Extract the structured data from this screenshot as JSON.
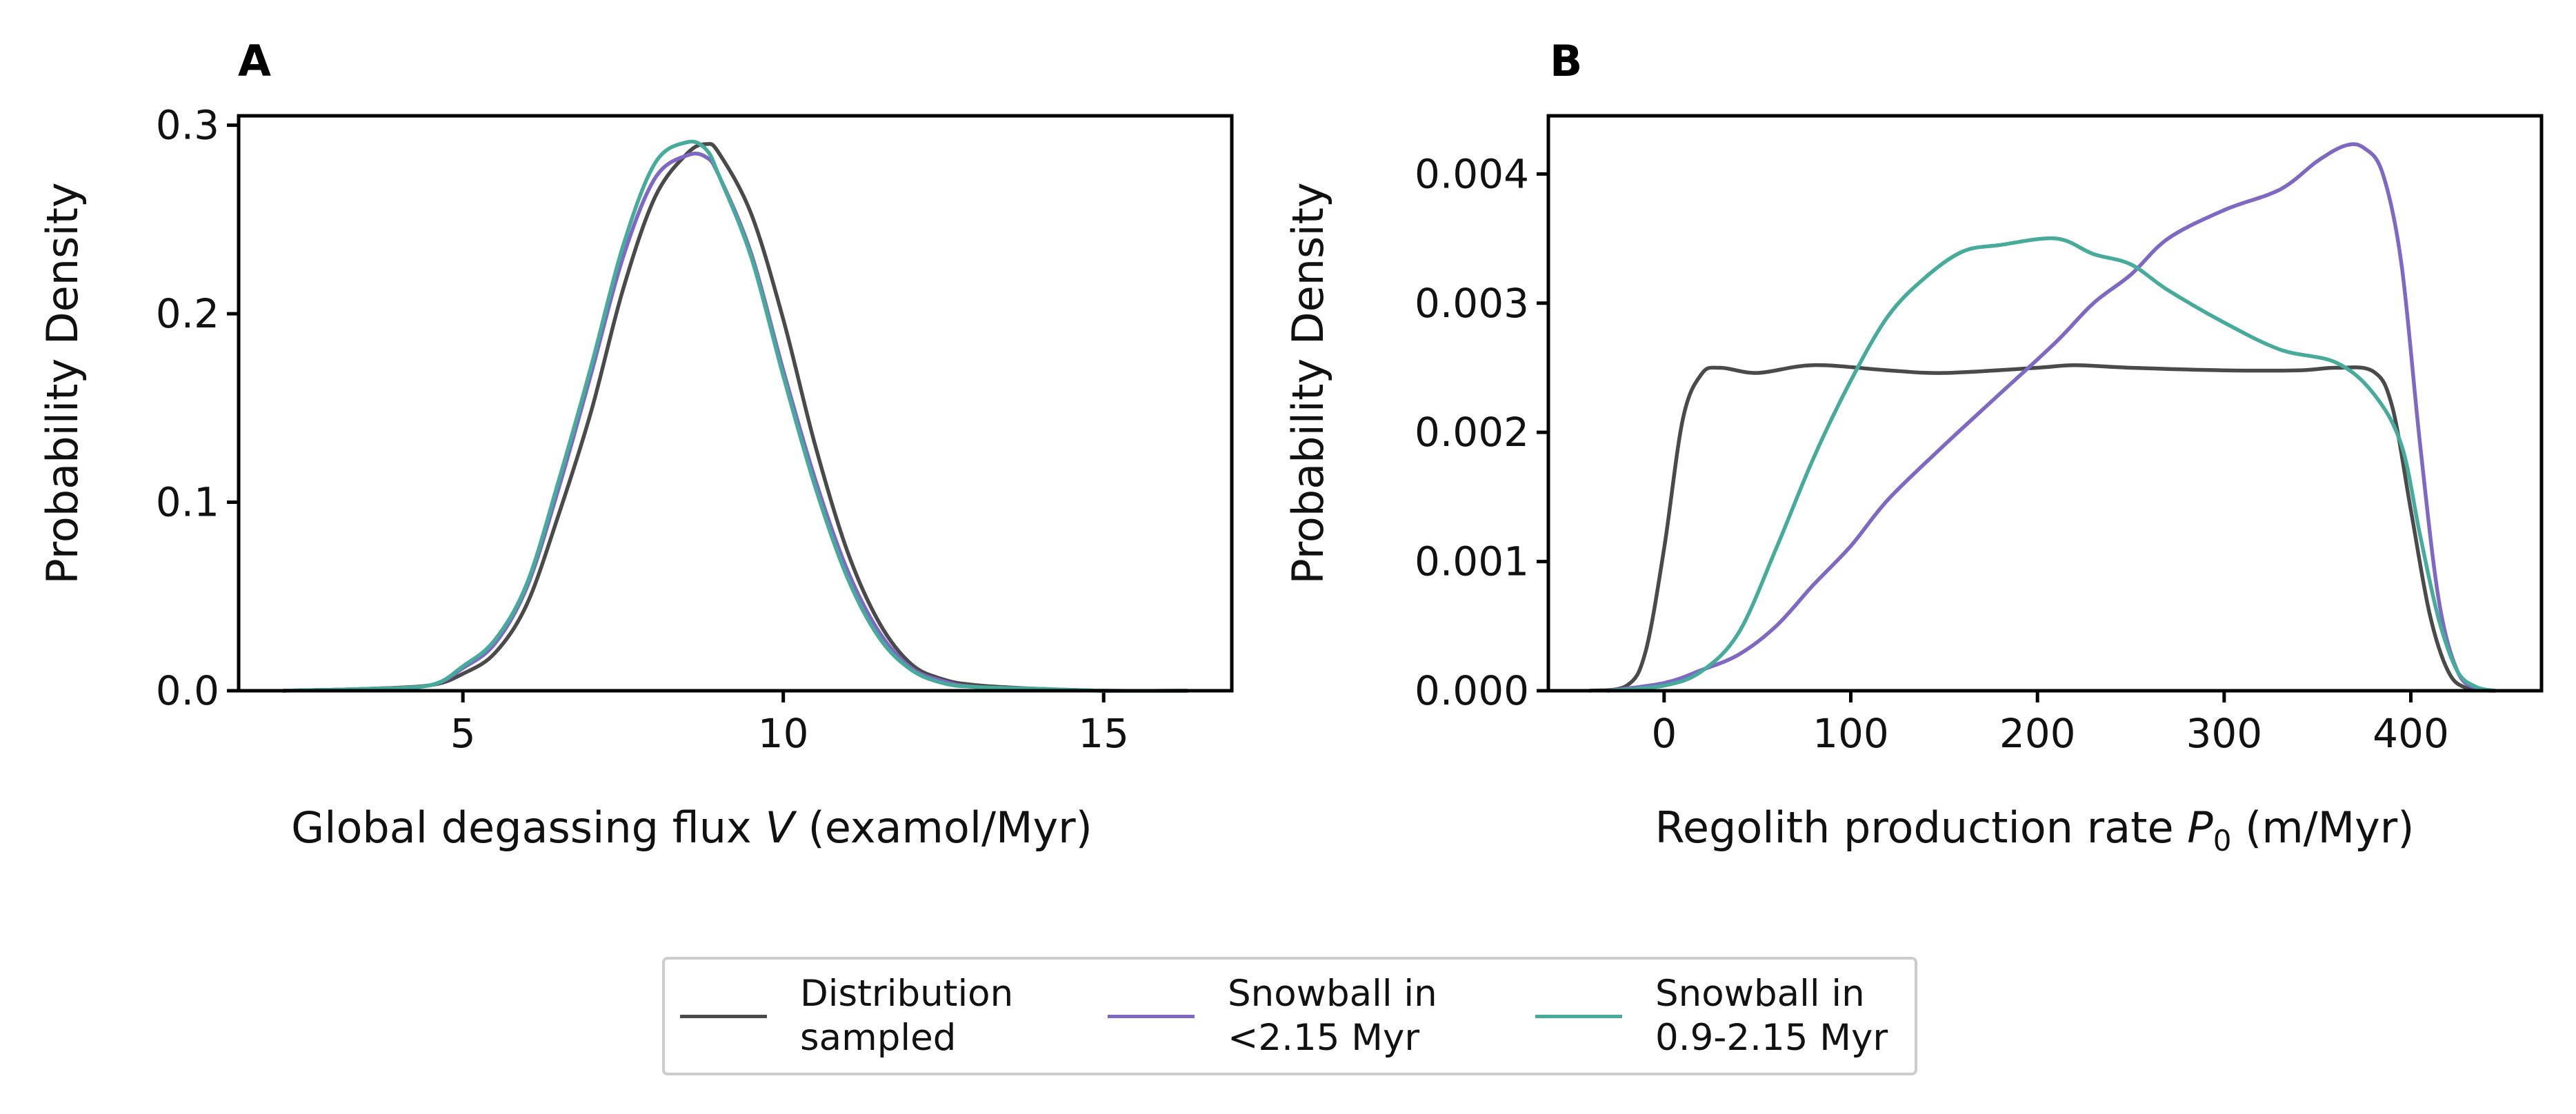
{
  "colors": {
    "distribution": "#4a4a4a",
    "snowball_lt": "#7f68c4",
    "snowball_range": "#46ab9b"
  },
  "legend": [
    {
      "label": "Distribution\nsampled",
      "color": "#4a4a4a"
    },
    {
      "label": "Snowball in\n<2.15 Myr",
      "color": "#7f68c4"
    },
    {
      "label": "Snowball in\n0.9-2.15 Myr",
      "color": "#46ab9b"
    }
  ],
  "chart_data": [
    {
      "type": "line",
      "panel": "A",
      "xlabel_prefix": "Global degassing flux ",
      "xlabel_var": "V",
      "xlabel_suffix": " (examol/Myr)",
      "ylabel": "Probability Density",
      "xlim": [
        1.5,
        17
      ],
      "ylim": [
        0,
        0.305
      ],
      "xticks": [
        5,
        10,
        15
      ],
      "xtick_labels": [
        "5",
        "10",
        "15"
      ],
      "yticks": [
        0.0,
        0.1,
        0.2,
        0.3
      ],
      "ytick_labels": [
        "0.0",
        "0.1",
        "0.2",
        "0.3"
      ],
      "series": [
        {
          "name": "Distribution sampled",
          "color": "#4a4a4a",
          "x": [
            2.2,
            3.5,
            4.5,
            5.0,
            5.5,
            6.0,
            6.5,
            7.0,
            7.5,
            8.0,
            8.5,
            8.8,
            9.0,
            9.5,
            10.0,
            10.5,
            11.0,
            11.5,
            12.0,
            12.5,
            13.0,
            14.0,
            15.0,
            16.3
          ],
          "y": [
            0.0,
            0.001,
            0.003,
            0.009,
            0.02,
            0.046,
            0.094,
            0.148,
            0.213,
            0.262,
            0.285,
            0.29,
            0.285,
            0.253,
            0.197,
            0.13,
            0.074,
            0.036,
            0.014,
            0.006,
            0.003,
            0.001,
            0.0,
            0.0
          ]
        },
        {
          "name": "Snowball in <2.15 Myr",
          "color": "#7f68c4",
          "x": [
            2.2,
            3.5,
            4.5,
            5.0,
            5.5,
            6.0,
            6.5,
            7.0,
            7.5,
            8.0,
            8.5,
            8.8,
            9.0,
            9.5,
            10.0,
            10.5,
            11.0,
            11.5,
            12.0,
            12.5,
            13.0,
            14.0,
            15.0,
            16.3
          ],
          "y": [
            0.0,
            0.001,
            0.003,
            0.012,
            0.025,
            0.055,
            0.108,
            0.168,
            0.23,
            0.272,
            0.284,
            0.283,
            0.273,
            0.232,
            0.17,
            0.112,
            0.064,
            0.031,
            0.012,
            0.005,
            0.002,
            0.001,
            0.0,
            0.0
          ]
        },
        {
          "name": "Snowball in 0.9-2.15 Myr",
          "color": "#46ab9b",
          "x": [
            2.2,
            3.5,
            4.5,
            5.0,
            5.5,
            6.0,
            6.5,
            7.0,
            7.5,
            8.0,
            8.5,
            8.8,
            9.0,
            9.5,
            10.0,
            10.5,
            11.0,
            11.5,
            12.0,
            12.5,
            13.0,
            14.0,
            15.0,
            16.3
          ],
          "y": [
            0.0,
            0.001,
            0.003,
            0.013,
            0.027,
            0.057,
            0.112,
            0.172,
            0.236,
            0.28,
            0.291,
            0.287,
            0.273,
            0.23,
            0.167,
            0.108,
            0.06,
            0.028,
            0.011,
            0.004,
            0.002,
            0.001,
            0.0,
            0.0
          ]
        }
      ]
    },
    {
      "type": "line",
      "panel": "B",
      "xlabel_prefix": "Regolith production rate ",
      "xlabel_var": "P",
      "xlabel_sub": "0",
      "xlabel_suffix": " (m/Myr)",
      "ylabel": "Probability Density",
      "xlim": [
        -62,
        470
      ],
      "ylim": [
        0,
        0.00445
      ],
      "xticks": [
        0,
        100,
        200,
        300,
        400
      ],
      "xtick_labels": [
        "0",
        "100",
        "200",
        "300",
        "400"
      ],
      "yticks": [
        0.0,
        0.001,
        0.002,
        0.003,
        0.004
      ],
      "ytick_labels": [
        "0.000",
        "0.001",
        "0.002",
        "0.003",
        "0.004"
      ],
      "series": [
        {
          "name": "Distribution sampled",
          "color": "#4a4a4a",
          "x": [
            -40,
            -20,
            -10,
            0,
            10,
            20,
            30,
            50,
            80,
            120,
            150,
            200,
            220,
            250,
            300,
            340,
            360,
            380,
            390,
            400,
            410,
            420,
            430,
            445
          ],
          "y": [
            0.0,
            4e-05,
            0.0003,
            0.0011,
            0.0021,
            0.00245,
            0.0025,
            0.00246,
            0.00252,
            0.00248,
            0.00246,
            0.0025,
            0.00252,
            0.0025,
            0.00248,
            0.00248,
            0.0025,
            0.00247,
            0.0022,
            0.0014,
            0.0006,
            0.00015,
            2e-05,
            0.0
          ]
        },
        {
          "name": "Snowball in <2.15 Myr",
          "color": "#7f68c4",
          "x": [
            -30,
            0,
            20,
            40,
            60,
            80,
            100,
            120,
            150,
            180,
            210,
            230,
            250,
            270,
            300,
            330,
            350,
            365,
            375,
            385,
            395,
            405,
            415,
            425,
            435,
            445
          ],
          "y": [
            0.0,
            6e-05,
            0.00016,
            0.00028,
            0.0005,
            0.00082,
            0.00112,
            0.00148,
            0.0019,
            0.0023,
            0.0027,
            0.003,
            0.00322,
            0.0035,
            0.00372,
            0.00388,
            0.0041,
            0.00422,
            0.0042,
            0.004,
            0.0033,
            0.0019,
            0.0007,
            0.00015,
            2e-05,
            0.0
          ]
        },
        {
          "name": "Snowball in 0.9-2.15 Myr",
          "color": "#46ab9b",
          "x": [
            -30,
            0,
            20,
            40,
            60,
            80,
            100,
            120,
            140,
            160,
            180,
            210,
            230,
            250,
            270,
            300,
            330,
            360,
            380,
            395,
            405,
            415,
            425,
            435,
            445
          ],
          "y": [
            0.0,
            4e-05,
            0.00015,
            0.00045,
            0.0011,
            0.0018,
            0.0024,
            0.0029,
            0.0032,
            0.0034,
            0.00345,
            0.0035,
            0.00338,
            0.0033,
            0.0031,
            0.00285,
            0.00264,
            0.00254,
            0.0023,
            0.0019,
            0.0012,
            0.00055,
            0.00015,
            3e-05,
            0.0
          ]
        }
      ]
    }
  ]
}
